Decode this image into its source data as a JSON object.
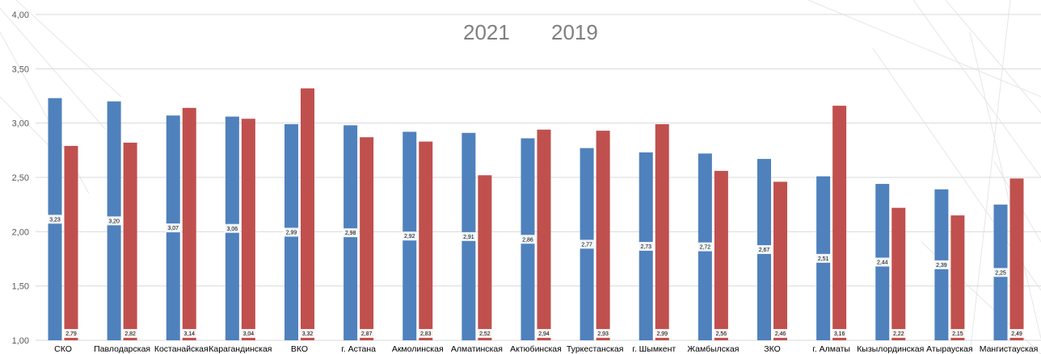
{
  "chart_data": {
    "type": "bar",
    "title": "",
    "xlabel": "",
    "ylabel": "",
    "ylim": [
      1.0,
      4.0
    ],
    "yticks": [
      "1,00",
      "1,50",
      "2,00",
      "2,50",
      "3,00",
      "3,50",
      "4,00"
    ],
    "grid": true,
    "legend_position": "top-center",
    "categories": [
      "СКО",
      "Павлодарская",
      "Костанайская",
      "Карагандинская",
      "ВКО",
      "г. Астана",
      "Акмолинская",
      "Алматинская",
      "Актюбинская",
      "Туркестанская",
      "г. Шымкент",
      "Жамбылская",
      "ЗКО",
      "г. Алматы",
      "Кызылординская",
      "Атырауская",
      "Мангистауская"
    ],
    "series": [
      {
        "name": "2021",
        "color": "#4f81bd",
        "values": [
          3.23,
          3.2,
          3.07,
          3.06,
          2.99,
          2.98,
          2.92,
          2.91,
          2.86,
          2.77,
          2.73,
          2.72,
          2.67,
          2.51,
          2.44,
          2.39,
          2.25
        ],
        "labels": [
          "3,23",
          "3,20",
          "3,07",
          "3,06",
          "2,99",
          "2,98",
          "2,92",
          "2,91",
          "2,86",
          "2,77",
          "2,73",
          "2,72",
          "2,67",
          "2,51",
          "2,44",
          "2,39",
          "2,25"
        ]
      },
      {
        "name": "2019",
        "color": "#c0504d",
        "values": [
          2.79,
          2.82,
          3.14,
          3.04,
          3.32,
          2.87,
          2.83,
          2.52,
          2.94,
          2.93,
          2.99,
          2.56,
          2.46,
          3.16,
          2.22,
          2.15,
          2.49
        ],
        "labels": [
          "2,79",
          "2,82",
          "3,14",
          "3,04",
          "3,32",
          "2,87",
          "2,83",
          "2,52",
          "2,94",
          "2,93",
          "2,99",
          "2,56",
          "2,46",
          "3,16",
          "2,22",
          "2,15",
          "2,49"
        ]
      }
    ]
  }
}
